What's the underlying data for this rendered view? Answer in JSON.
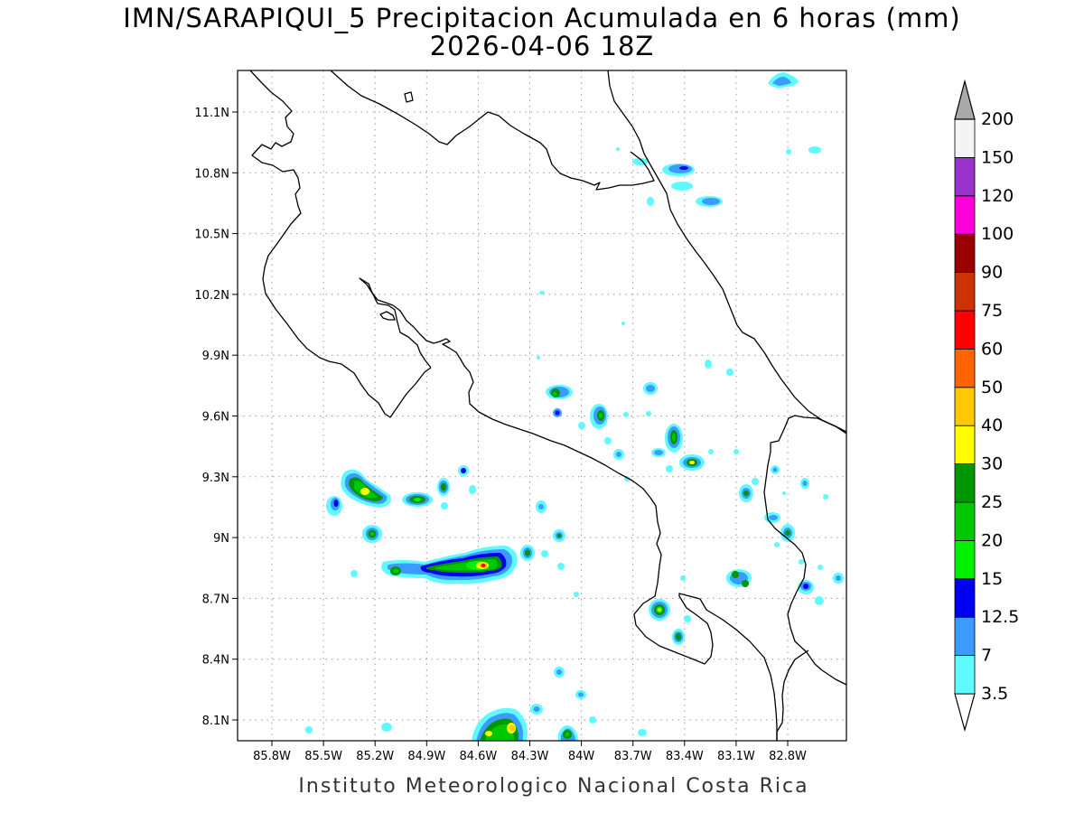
{
  "title": {
    "line1": "IMN/SARAPIQUI_5 Precipitacion Acumulada en 6 horas (mm)",
    "line2": "2026-04-06 18Z"
  },
  "credit": "Instituto Meteorologico Nacional Costa Rica",
  "map": {
    "lon_range": [
      -86.0,
      -83.0
    ],
    "lat_range": [
      8.0,
      11.2
    ],
    "x_ticks": [
      {
        "lon": -85.8,
        "label": "85.8W"
      },
      {
        "lon": -85.5,
        "label": "85.5W"
      },
      {
        "lon": -85.2,
        "label": "85.2W"
      },
      {
        "lon": -84.9,
        "label": "84.9W"
      },
      {
        "lon": -84.6,
        "label": "84.6W"
      },
      {
        "lon": -84.3,
        "label": "84.3W"
      },
      {
        "lon": -84.0,
        "label": "84W"
      },
      {
        "lon": -83.7,
        "label": "83.7W"
      },
      {
        "lon": -83.4,
        "label": "83.4W"
      },
      {
        "lon": -83.1,
        "label": "83.1W"
      },
      {
        "lon": -82.8,
        "label": "82.8W"
      }
    ],
    "y_ticks": [
      {
        "lat": 11.1,
        "label": "11.1N"
      },
      {
        "lat": 10.8,
        "label": "10.8N"
      },
      {
        "lat": 10.5,
        "label": "10.5N"
      },
      {
        "lat": 10.2,
        "label": "10.2N"
      },
      {
        "lat": 9.9,
        "label": "9.9N"
      },
      {
        "lat": 9.6,
        "label": "9.6N"
      },
      {
        "lat": 9.3,
        "label": "9.3N"
      },
      {
        "lat": 9.0,
        "label": "9N"
      },
      {
        "lat": 8.7,
        "label": "8.7N"
      },
      {
        "lat": 8.4,
        "label": "8.4N"
      },
      {
        "lat": 8.1,
        "label": "8.1N"
      }
    ],
    "grid": true
  },
  "legend": {
    "classes": [
      {
        "label": "3.5",
        "color": "#5ffaff"
      },
      {
        "label": "7",
        "color": "#3c9bff"
      },
      {
        "label": "12.5",
        "color": "#0000f5"
      },
      {
        "label": "15",
        "color": "#00f000"
      },
      {
        "label": "20",
        "color": "#00c800"
      },
      {
        "label": "25",
        "color": "#009600"
      },
      {
        "label": "30",
        "color": "#ffff00"
      },
      {
        "label": "40",
        "color": "#ffc800"
      },
      {
        "label": "50",
        "color": "#ff6400"
      },
      {
        "label": "60",
        "color": "#ff0000"
      },
      {
        "label": "75",
        "color": "#cc3300"
      },
      {
        "label": "90",
        "color": "#990000"
      },
      {
        "label": "100",
        "color": "#ff00dc"
      },
      {
        "label": "120",
        "color": "#9933cc"
      },
      {
        "label": "150",
        "color": "#f4f4f4"
      },
      {
        "label": "200",
        "color": "#a9a9a9"
      }
    ],
    "low_end_color": "#ffffff",
    "high_end_color": "#a9a9a9"
  },
  "chart_data": {
    "type": "heatmap",
    "variable": "precipitation accumulated 6 h (mm)",
    "cells": [
      {
        "lon": -85.35,
        "lat": 9.25,
        "value": 25
      },
      {
        "lon": -85.25,
        "lat": 9.22,
        "value": 30
      },
      {
        "lon": -85.2,
        "lat": 9.18,
        "value": 25
      },
      {
        "lon": -85.1,
        "lat": 9.18,
        "value": 15
      },
      {
        "lon": -85.5,
        "lat": 9.15,
        "value": 12.5
      },
      {
        "lon": -85.05,
        "lat": 9.02,
        "value": 20
      },
      {
        "lon": -84.95,
        "lat": 9.18,
        "value": 25
      },
      {
        "lon": -84.75,
        "lat": 9.24,
        "value": 20
      },
      {
        "lon": -84.65,
        "lat": 9.33,
        "value": 12.5
      },
      {
        "lon": -85.25,
        "lat": 8.83,
        "value": 15
      },
      {
        "lon": -84.8,
        "lat": 8.84,
        "value": 25
      },
      {
        "lon": -84.65,
        "lat": 8.86,
        "value": 30
      },
      {
        "lon": -84.55,
        "lat": 8.87,
        "value": 60
      },
      {
        "lon": -84.4,
        "lat": 8.88,
        "value": 25
      },
      {
        "lon": -84.3,
        "lat": 8.9,
        "value": 15
      },
      {
        "lon": -84.2,
        "lat": 9.0,
        "value": 15
      },
      {
        "lon": -84.2,
        "lat": 9.15,
        "value": 7
      },
      {
        "lon": -84.1,
        "lat": 9.72,
        "value": 20
      },
      {
        "lon": -84.1,
        "lat": 9.62,
        "value": 12.5
      },
      {
        "lon": -83.85,
        "lat": 9.6,
        "value": 25
      },
      {
        "lon": -83.65,
        "lat": 9.74,
        "value": 7
      },
      {
        "lon": -83.55,
        "lat": 9.52,
        "value": 30
      },
      {
        "lon": -83.4,
        "lat": 9.37,
        "value": 40
      },
      {
        "lon": -83.6,
        "lat": 9.4,
        "value": 15
      },
      {
        "lon": -83.55,
        "lat": 8.63,
        "value": 40
      },
      {
        "lon": -83.5,
        "lat": 8.5,
        "value": 25
      },
      {
        "lon": -83.1,
        "lat": 8.8,
        "value": 20
      },
      {
        "lon": -83.1,
        "lat": 9.23,
        "value": 20
      },
      {
        "lon": -82.95,
        "lat": 9.05,
        "value": 20
      },
      {
        "lon": -82.85,
        "lat": 8.76,
        "value": 12.5
      },
      {
        "lon": -84.55,
        "lat": 8.05,
        "value": 30
      },
      {
        "lon": -84.45,
        "lat": 8.05,
        "value": 40
      },
      {
        "lon": -84.05,
        "lat": 8.05,
        "value": 20
      },
      {
        "lon": -83.35,
        "lat": 10.84,
        "value": 7
      },
      {
        "lon": -83.15,
        "lat": 10.68,
        "value": 7
      }
    ]
  }
}
